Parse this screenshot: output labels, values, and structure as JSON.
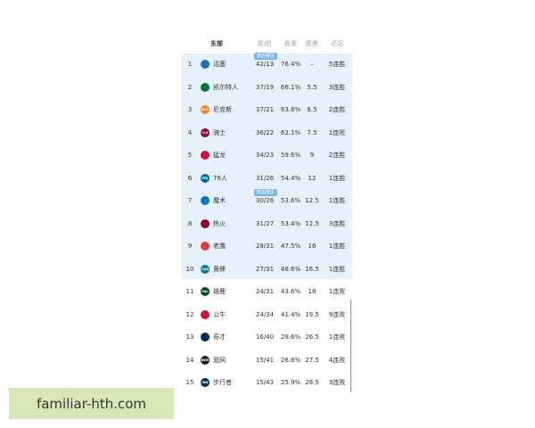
{
  "header": {
    "team": "东部",
    "record": "胜/负",
    "pct": "胜率",
    "gb": "胜差",
    "streak": "近况"
  },
  "zones": {
    "playoff": "季后赛区",
    "playin": "附加赛区"
  },
  "rows": [
    {
      "rank": 1,
      "team": "活塞",
      "record": "42/13",
      "pct": "76.4%",
      "gb": "–",
      "streak": "5连胜"
    },
    {
      "rank": 2,
      "team": "凯尔特人",
      "record": "37/19",
      "pct": "66.1%",
      "gb": "5.5",
      "streak": "3连胜"
    },
    {
      "rank": 3,
      "logo": "NYK",
      "team": "尼克斯",
      "record": "37/21",
      "pct": "63.8%",
      "gb": "6.5",
      "streak": "2连胜"
    },
    {
      "rank": 4,
      "logo": "CLE",
      "team": "骑士",
      "record": "36/22",
      "pct": "62.1%",
      "gb": "7.5",
      "streak": "1连败"
    },
    {
      "rank": 5,
      "team": "猛龙",
      "record": "34/23",
      "pct": "59.6%",
      "gb": "9",
      "streak": "2连胜"
    },
    {
      "rank": 6,
      "logo": "PHI",
      "team": "76人",
      "record": "31/26",
      "pct": "54.4%",
      "gb": "12",
      "streak": "1连胜"
    },
    {
      "rank": 7,
      "team": "魔术",
      "record": "30/26",
      "pct": "53.6%",
      "gb": "12.5",
      "streak": "1连胜"
    },
    {
      "rank": 8,
      "team": "热火",
      "record": "31/27",
      "pct": "53.4%",
      "gb": "12.5",
      "streak": "3连胜"
    },
    {
      "rank": 9,
      "team": "老鹰",
      "record": "28/31",
      "pct": "47.5%",
      "gb": "16",
      "streak": "1连胜"
    },
    {
      "rank": 10,
      "logo": "CHA",
      "team": "黄蜂",
      "record": "27/31",
      "pct": "46.6%",
      "gb": "16.5",
      "streak": "1连胜"
    },
    {
      "rank": 11,
      "logo": "MIL",
      "team": "雄鹿",
      "record": "24/31",
      "pct": "43.6%",
      "gb": "18",
      "streak": "1连败"
    },
    {
      "rank": 12,
      "team": "公牛",
      "record": "24/34",
      "pct": "41.4%",
      "gb": "19.5",
      "streak": "9连败"
    },
    {
      "rank": 13,
      "team": "奇才",
      "record": "16/40",
      "pct": "28.6%",
      "gb": "26.5",
      "streak": "1连败"
    },
    {
      "rank": 14,
      "logo": "BKN",
      "team": "篮网",
      "record": "15/41",
      "pct": "26.8%",
      "gb": "27.5",
      "streak": "4连败"
    },
    {
      "rank": 15,
      "logo": "IND",
      "team": "步行者",
      "record": "15/43",
      "pct": "25.9%",
      "gb": "28.5",
      "streak": "3连败"
    }
  ],
  "brand": "familiar-hth.com"
}
